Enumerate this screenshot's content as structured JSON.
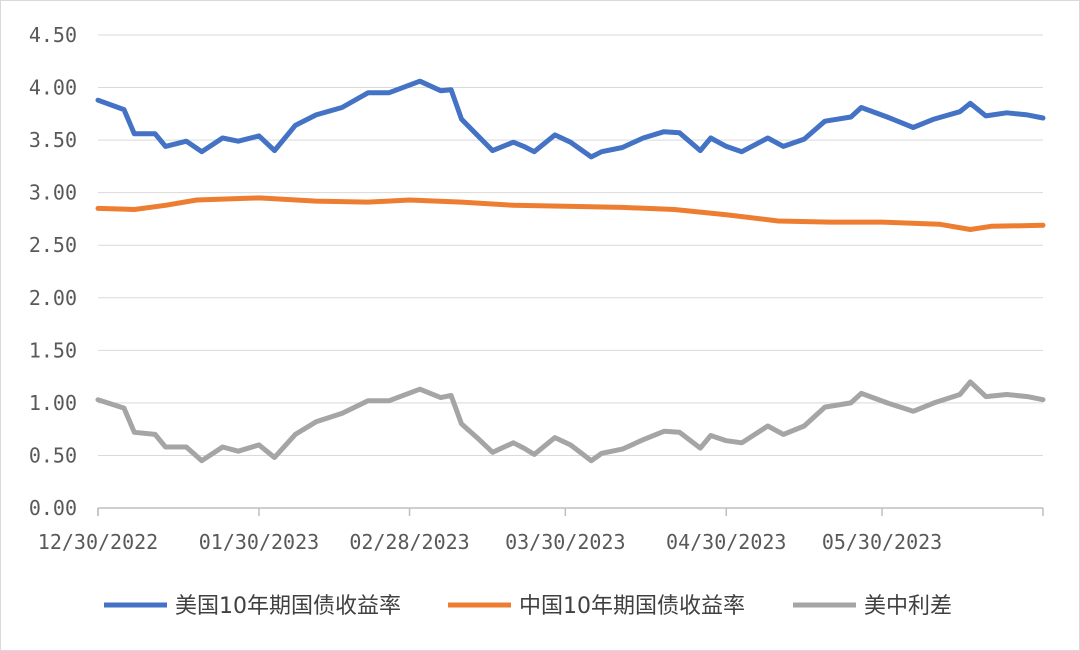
{
  "chart_data": {
    "type": "line",
    "ylim": [
      0,
      4.5
    ],
    "yticks": [
      "0.00",
      "0.50",
      "1.00",
      "1.50",
      "2.00",
      "2.50",
      "3.00",
      "3.50",
      "4.00",
      "4.50"
    ],
    "xticks": [
      "12/30/2022",
      "01/30/2023",
      "02/28/2023",
      "03/30/2023",
      "04/30/2023",
      "05/30/2023"
    ],
    "x_range": [
      "12/30/2022",
      "06/30/2023"
    ],
    "grid": "horizontal",
    "legend_position": "bottom",
    "series": [
      {
        "name": "美国10年期国债收益率",
        "color": "#4472C4",
        "points": [
          [
            "12/30/2022",
            3.88
          ],
          [
            "01/04/2023",
            3.79
          ],
          [
            "01/06/2023",
            3.56
          ],
          [
            "01/10/2023",
            3.56
          ],
          [
            "01/12/2023",
            3.44
          ],
          [
            "01/16/2023",
            3.49
          ],
          [
            "01/19/2023",
            3.39
          ],
          [
            "01/23/2023",
            3.52
          ],
          [
            "01/26/2023",
            3.49
          ],
          [
            "01/30/2023",
            3.54
          ],
          [
            "02/02/2023",
            3.4
          ],
          [
            "02/06/2023",
            3.64
          ],
          [
            "02/10/2023",
            3.74
          ],
          [
            "02/15/2023",
            3.81
          ],
          [
            "02/20/2023",
            3.95
          ],
          [
            "02/24/2023",
            3.95
          ],
          [
            "03/02/2023",
            4.06
          ],
          [
            "03/06/2023",
            3.97
          ],
          [
            "03/08/2023",
            3.98
          ],
          [
            "03/10/2023",
            3.7
          ],
          [
            "03/13/2023",
            3.55
          ],
          [
            "03/16/2023",
            3.4
          ],
          [
            "03/20/2023",
            3.48
          ],
          [
            "03/22/2023",
            3.44
          ],
          [
            "03/24/2023",
            3.39
          ],
          [
            "03/28/2023",
            3.55
          ],
          [
            "03/31/2023",
            3.48
          ],
          [
            "04/04/2023",
            3.34
          ],
          [
            "04/06/2023",
            3.39
          ],
          [
            "04/10/2023",
            3.43
          ],
          [
            "04/14/2023",
            3.52
          ],
          [
            "04/18/2023",
            3.58
          ],
          [
            "04/21/2023",
            3.57
          ],
          [
            "04/25/2023",
            3.4
          ],
          [
            "04/27/2023",
            3.52
          ],
          [
            "04/30/2023",
            3.44
          ],
          [
            "05/03/2023",
            3.39
          ],
          [
            "05/08/2023",
            3.52
          ],
          [
            "05/11/2023",
            3.44
          ],
          [
            "05/15/2023",
            3.51
          ],
          [
            "05/19/2023",
            3.68
          ],
          [
            "05/24/2023",
            3.72
          ],
          [
            "05/26/2023",
            3.81
          ],
          [
            "05/31/2023",
            3.72
          ],
          [
            "06/05/2023",
            3.62
          ],
          [
            "06/09/2023",
            3.7
          ],
          [
            "06/14/2023",
            3.77
          ],
          [
            "06/16/2023",
            3.85
          ],
          [
            "06/19/2023",
            3.73
          ],
          [
            "06/23/2023",
            3.76
          ],
          [
            "06/27/2023",
            3.74
          ],
          [
            "06/30/2023",
            3.71
          ]
        ]
      },
      {
        "name": "中国10年期国债收益率",
        "color": "#ED7D31",
        "points": [
          [
            "12/30/2022",
            2.85
          ],
          [
            "01/06/2023",
            2.84
          ],
          [
            "01/12/2023",
            2.88
          ],
          [
            "01/18/2023",
            2.93
          ],
          [
            "01/30/2023",
            2.95
          ],
          [
            "02/10/2023",
            2.92
          ],
          [
            "02/20/2023",
            2.91
          ],
          [
            "02/28/2023",
            2.93
          ],
          [
            "03/10/2023",
            2.91
          ],
          [
            "03/20/2023",
            2.88
          ],
          [
            "03/30/2023",
            2.87
          ],
          [
            "04/10/2023",
            2.86
          ],
          [
            "04/20/2023",
            2.84
          ],
          [
            "04/30/2023",
            2.79
          ],
          [
            "05/10/2023",
            2.73
          ],
          [
            "05/20/2023",
            2.72
          ],
          [
            "05/30/2023",
            2.72
          ],
          [
            "06/10/2023",
            2.7
          ],
          [
            "06/16/2023",
            2.65
          ],
          [
            "06/20/2023",
            2.68
          ],
          [
            "06/30/2023",
            2.69
          ]
        ]
      },
      {
        "name": "美中利差",
        "color": "#A5A5A5",
        "points": [
          [
            "12/30/2022",
            1.03
          ],
          [
            "01/04/2023",
            0.95
          ],
          [
            "01/06/2023",
            0.72
          ],
          [
            "01/10/2023",
            0.7
          ],
          [
            "01/12/2023",
            0.58
          ],
          [
            "01/16/2023",
            0.58
          ],
          [
            "01/19/2023",
            0.45
          ],
          [
            "01/23/2023",
            0.58
          ],
          [
            "01/26/2023",
            0.54
          ],
          [
            "01/30/2023",
            0.6
          ],
          [
            "02/02/2023",
            0.48
          ],
          [
            "02/06/2023",
            0.7
          ],
          [
            "02/10/2023",
            0.82
          ],
          [
            "02/15/2023",
            0.9
          ],
          [
            "02/20/2023",
            1.02
          ],
          [
            "02/24/2023",
            1.02
          ],
          [
            "03/02/2023",
            1.13
          ],
          [
            "03/06/2023",
            1.05
          ],
          [
            "03/08/2023",
            1.07
          ],
          [
            "03/10/2023",
            0.8
          ],
          [
            "03/13/2023",
            0.67
          ],
          [
            "03/16/2023",
            0.53
          ],
          [
            "03/20/2023",
            0.62
          ],
          [
            "03/22/2023",
            0.57
          ],
          [
            "03/24/2023",
            0.51
          ],
          [
            "03/28/2023",
            0.67
          ],
          [
            "03/31/2023",
            0.6
          ],
          [
            "04/04/2023",
            0.45
          ],
          [
            "04/06/2023",
            0.52
          ],
          [
            "04/10/2023",
            0.56
          ],
          [
            "04/14/2023",
            0.65
          ],
          [
            "04/18/2023",
            0.73
          ],
          [
            "04/21/2023",
            0.72
          ],
          [
            "04/25/2023",
            0.57
          ],
          [
            "04/27/2023",
            0.69
          ],
          [
            "04/30/2023",
            0.64
          ],
          [
            "05/03/2023",
            0.62
          ],
          [
            "05/08/2023",
            0.78
          ],
          [
            "05/11/2023",
            0.7
          ],
          [
            "05/15/2023",
            0.78
          ],
          [
            "05/19/2023",
            0.96
          ],
          [
            "05/24/2023",
            1.0
          ],
          [
            "05/26/2023",
            1.09
          ],
          [
            "05/31/2023",
            1.0
          ],
          [
            "06/05/2023",
            0.92
          ],
          [
            "06/09/2023",
            1.0
          ],
          [
            "06/14/2023",
            1.08
          ],
          [
            "06/16/2023",
            1.2
          ],
          [
            "06/19/2023",
            1.06
          ],
          [
            "06/23/2023",
            1.08
          ],
          [
            "06/27/2023",
            1.06
          ],
          [
            "06/30/2023",
            1.03
          ]
        ]
      }
    ]
  }
}
